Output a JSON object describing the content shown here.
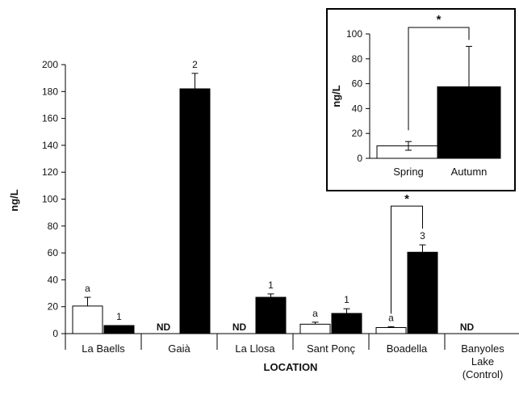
{
  "chart_data": [
    {
      "type": "bar",
      "xlabel": "LOCATION",
      "ylabel": "ng/L",
      "ylim": [
        0,
        200
      ],
      "yticks": [
        0,
        20,
        40,
        60,
        80,
        100,
        120,
        140,
        160,
        180,
        200
      ],
      "categories": [
        "La Baells",
        "Gaià",
        "La Llosa",
        "Sant Ponç",
        "Boadella",
        "Banyoles Lake (Control)"
      ],
      "series": [
        {
          "color": "#ffffff",
          "values": [
            20.5,
            null,
            null,
            7,
            4.5,
            null
          ],
          "errors": [
            6.5,
            null,
            null,
            1.5,
            0.7,
            null
          ],
          "labels": [
            "a",
            "ND",
            "ND",
            "a",
            "a",
            "ND"
          ]
        },
        {
          "color": "#000000",
          "values": [
            6,
            182,
            27,
            15,
            60.5,
            null
          ],
          "errors": [
            0,
            11.5,
            2.5,
            3.5,
            5.5,
            null
          ],
          "labels": [
            "1",
            "2",
            "1",
            "1",
            "3",
            ""
          ]
        }
      ],
      "significance": [
        {
          "category": "Boadella",
          "label": "*"
        }
      ],
      "grid": false
    },
    {
      "type": "bar",
      "ylabel": "ng/L",
      "ylim": [
        0,
        100
      ],
      "yticks": [
        0,
        20,
        40,
        60,
        80,
        100
      ],
      "categories": [
        "Spring",
        "Autumn"
      ],
      "values": [
        10,
        57.5
      ],
      "errors": [
        3.5,
        32.5
      ],
      "colors": [
        "#ffffff",
        "#000000"
      ],
      "significance": {
        "label": "*"
      },
      "grid": false
    }
  ]
}
